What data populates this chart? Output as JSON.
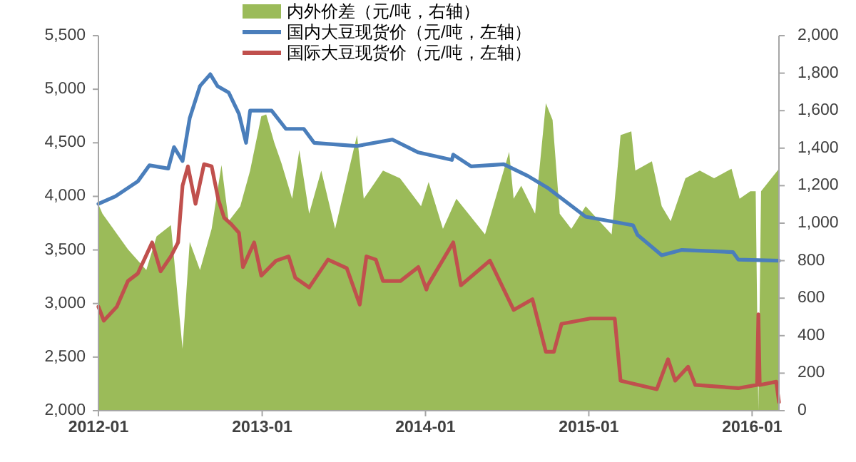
{
  "chart_data": {
    "type": "line",
    "legend": "top",
    "xlim": [
      "2012-01",
      "2016-03"
    ],
    "xticks": [
      "2012-01",
      "2013-01",
      "2014-01",
      "2015-01",
      "2016-01"
    ],
    "ylim": [
      2000,
      5500
    ],
    "yticks": [
      {
        "value": 2000,
        "label": "2,000"
      },
      {
        "value": 2500,
        "label": "2,500"
      },
      {
        "value": 3000,
        "label": "3,000"
      },
      {
        "value": 3500,
        "label": "3,500"
      },
      {
        "value": 4000,
        "label": "4,000"
      },
      {
        "value": 4500,
        "label": "4,500"
      },
      {
        "value": 5000,
        "label": "5,000"
      },
      {
        "value": 5500,
        "label": "5,500"
      }
    ],
    "y2lim": [
      0,
      2000
    ],
    "y2ticks": [
      0,
      200,
      400,
      600,
      800,
      {
        "value": 1000,
        "label": "1,000"
      },
      {
        "value": 1200,
        "label": "1,200"
      },
      {
        "value": 1400,
        "label": "1,400"
      },
      {
        "value": 1600,
        "label": "1,600"
      },
      {
        "value": 1800,
        "label": "1,800"
      },
      {
        "value": 2000,
        "label": "2,000"
      }
    ],
    "series": [
      {
        "name": "内外价差（元/吨，右轴）",
        "type": "area",
        "axis": "y2",
        "color": "#9bbb59",
        "x": [
          "2012-01-01",
          "2012-01-10",
          "2012-03-07",
          "2012-04-17",
          "2012-05-10",
          "2012-06-11",
          "2012-07-07",
          "2012-07-23",
          "2012-08-15",
          "2012-09-10",
          "2012-10-02",
          "2012-10-18",
          "2012-11-13",
          "2012-12-05",
          "2012-12-30",
          "2013-01-10",
          "2013-01-28",
          "2013-02-13",
          "2013-03-09",
          "2013-03-25",
          "2013-04-16",
          "2013-05-13",
          "2013-06-13",
          "2013-08-01",
          "2013-08-16",
          "2013-09-28",
          "2013-11-05",
          "2013-12-22",
          "2014-01-08",
          "2014-02-09",
          "2014-03-11",
          "2014-05-14",
          "2014-07-07",
          "2014-07-17",
          "2014-08-03",
          "2014-09-03",
          "2014-09-27",
          "2014-10-12",
          "2014-10-28",
          "2014-11-23",
          "2014-12-25",
          "2015-02-21",
          "2015-03-13",
          "2015-04-06",
          "2015-04-15",
          "2015-05-22",
          "2015-06-13",
          "2015-07-03",
          "2015-08-05",
          "2015-09-06",
          "2015-10-08",
          "2015-11-16",
          "2015-12-04",
          "2015-12-28",
          "2016-01-09",
          "2016-01-15",
          "2016-01-21",
          "2016-03-01"
        ],
        "values": [
          1100,
          1050,
          860,
          750,
          930,
          990,
          330,
          900,
          750,
          970,
          1310,
          1010,
          1090,
          1280,
          1570,
          1580,
          1430,
          1320,
          1130,
          1390,
          1050,
          1280,
          970,
          1470,
          1130,
          1280,
          1240,
          1090,
          1220,
          970,
          1130,
          940,
          1380,
          1130,
          1200,
          1050,
          1640,
          1550,
          1050,
          970,
          1090,
          940,
          1470,
          1490,
          1280,
          1330,
          1090,
          1010,
          1240,
          1280,
          1240,
          1290,
          1130,
          1170,
          1170,
          0,
          1170,
          1290
        ]
      },
      {
        "name": "国内大豆现货价（元/吨，左轴）",
        "type": "line",
        "color": "#4a7ebb",
        "x": [
          "2012-01-01",
          "2012-02-08",
          "2012-03-29",
          "2012-04-24",
          "2012-06-05",
          "2012-06-18",
          "2012-07-07",
          "2012-07-23",
          "2012-08-15",
          "2012-09-07",
          "2012-09-23",
          "2012-10-18",
          "2012-11-10",
          "2012-11-26",
          "2012-12-05",
          "2013-01-22",
          "2013-02-23",
          "2013-04-04",
          "2013-04-27",
          "2013-08-01",
          "2013-10-19",
          "2013-12-16",
          "2014-03-01",
          "2014-03-04",
          "2014-04-13",
          "2014-06-25",
          "2014-08-18",
          "2014-10-01",
          "2014-12-25",
          "2015-04-10",
          "2015-04-20",
          "2015-06-13",
          "2015-07-28",
          "2015-11-19",
          "2015-12-01",
          "2016-03-01"
        ],
        "values": [
          3930,
          4000,
          4140,
          4290,
          4260,
          4460,
          4330,
          4730,
          5030,
          5140,
          5030,
          4970,
          4770,
          4500,
          4800,
          4800,
          4630,
          4630,
          4500,
          4470,
          4530,
          4410,
          4340,
          4390,
          4280,
          4300,
          4190,
          4080,
          3810,
          3730,
          3640,
          3450,
          3500,
          3480,
          3410,
          3400
        ]
      },
      {
        "name": "国际大豆现货价（元/吨，左轴）",
        "type": "line",
        "color": "#c0504d",
        "x": [
          "2012-01-01",
          "2012-01-13",
          "2012-02-11",
          "2012-03-07",
          "2012-03-29",
          "2012-04-30",
          "2012-05-19",
          "2012-06-11",
          "2012-06-27",
          "2012-07-07",
          "2012-07-19",
          "2012-08-05",
          "2012-08-24",
          "2012-09-10",
          "2012-09-25",
          "2012-10-08",
          "2012-10-24",
          "2012-11-10",
          "2012-11-19",
          "2012-12-14",
          "2012-12-30",
          "2013-02-01",
          "2013-03-01",
          "2013-03-16",
          "2013-04-16",
          "2013-05-28",
          "2013-07-09",
          "2013-08-07",
          "2013-08-22",
          "2013-09-12",
          "2013-09-28",
          "2013-11-06",
          "2013-12-16",
          "2014-01-03",
          "2014-01-06",
          "2014-03-04",
          "2014-03-21",
          "2014-05-25",
          "2014-07-17",
          "2014-08-28",
          "2014-09-27",
          "2014-10-15",
          "2014-11-01",
          "2015-01-04",
          "2015-02-28",
          "2015-03-13",
          "2015-06-02",
          "2015-06-27",
          "2015-07-13",
          "2015-08-11",
          "2015-08-27",
          "2015-12-01",
          "2016-01-12",
          "2016-01-15",
          "2016-01-18",
          "2016-02-24",
          "2016-03-01"
        ],
        "values": [
          2970,
          2840,
          2970,
          3210,
          3280,
          3570,
          3300,
          3440,
          3570,
          4100,
          4280,
          3930,
          4300,
          4280,
          3970,
          3800,
          3740,
          3660,
          3340,
          3570,
          3260,
          3400,
          3440,
          3240,
          3150,
          3410,
          3330,
          2990,
          3440,
          3410,
          3210,
          3210,
          3340,
          3130,
          3170,
          3570,
          3170,
          3400,
          2940,
          3040,
          2550,
          2550,
          2810,
          2860,
          2860,
          2280,
          2200,
          2480,
          2280,
          2410,
          2240,
          2210,
          2240,
          2900,
          2240,
          2270,
          2080
        ]
      }
    ]
  }
}
